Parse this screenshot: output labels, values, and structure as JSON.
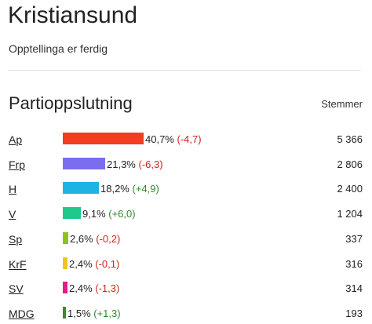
{
  "header": {
    "title": "Kristiansund",
    "status": "Opptellinga er ferdig"
  },
  "section": {
    "title": "Partioppslutning",
    "votes_header": "Stemmer"
  },
  "chart_data": {
    "type": "bar",
    "title": "Partioppslutning",
    "categories": [
      "Ap",
      "Frp",
      "H",
      "V",
      "Sp",
      "KrF",
      "SV",
      "MDG"
    ],
    "values": [
      40.7,
      21.3,
      18.2,
      9.1,
      2.6,
      2.4,
      2.4,
      1.5
    ],
    "changes": [
      -4.7,
      -6.3,
      4.9,
      6.0,
      -0.2,
      -0.1,
      -1.3,
      1.3
    ],
    "votes": [
      5366,
      2806,
      2400,
      1204,
      337,
      316,
      314,
      193
    ],
    "value_labels": [
      "40,7%",
      "21,3%",
      "18,2%",
      "9,1%",
      "2,6%",
      "2,4%",
      "2,4%",
      "1,5%"
    ],
    "change_labels": [
      "(-4,7)",
      "(-6,3)",
      "(+4,9)",
      "(+6,0)",
      "(-0,2)",
      "(-0,1)",
      "(-1,3)",
      "(+1,3)"
    ],
    "vote_labels": [
      "5 366",
      "2 806",
      "2 400",
      "1 204",
      "337",
      "316",
      "314",
      "193"
    ],
    "colors": [
      "#f23d1e",
      "#7b6cf0",
      "#1fb3e4",
      "#1ec98b",
      "#8fc21c",
      "#f2c41b",
      "#e8198b",
      "#3c8a21"
    ],
    "change_colors": {
      "negative": "#d0241d",
      "positive": "#2d8a2d"
    },
    "xlim": [
      0,
      40.7
    ]
  }
}
